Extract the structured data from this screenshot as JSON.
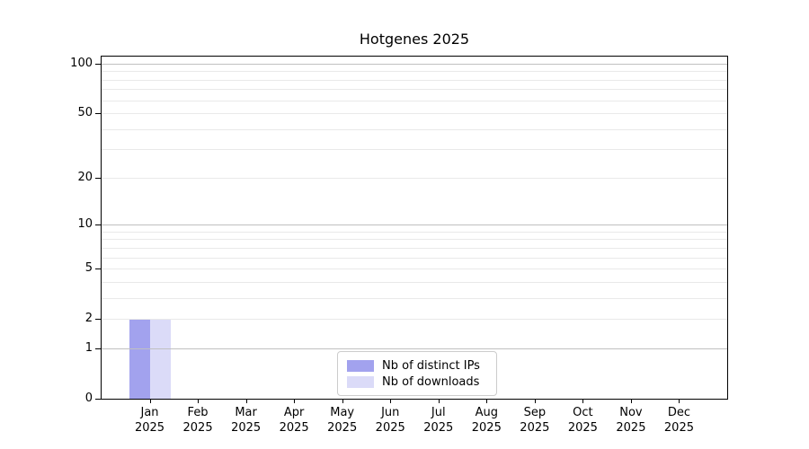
{
  "chart_data": {
    "type": "bar",
    "title": "Hotgenes 2025",
    "categories": [
      "Jan",
      "Feb",
      "Mar",
      "Apr",
      "May",
      "Jun",
      "Jul",
      "Aug",
      "Sep",
      "Oct",
      "Nov",
      "Dec"
    ],
    "x_year": "2025",
    "series": [
      {
        "name": "Nb of distinct IPs",
        "color": "#a2a2ee",
        "values": [
          2,
          0,
          0,
          0,
          0,
          0,
          0,
          0,
          0,
          0,
          0,
          0
        ]
      },
      {
        "name": "Nb of downloads",
        "color": "#dbdbf8",
        "values": [
          2,
          0,
          0,
          0,
          0,
          0,
          0,
          0,
          0,
          0,
          0,
          0
        ]
      }
    ],
    "xlabel": "",
    "ylabel": "",
    "yscale": "log1p",
    "ylim": [
      0,
      110.5
    ],
    "yticks": [
      0,
      1,
      2,
      5,
      10,
      20,
      50,
      100
    ],
    "minor_gridline_values": [
      3,
      4,
      6,
      7,
      8,
      9,
      30,
      40,
      60,
      70,
      80,
      90
    ],
    "decade_gridline_values": [
      1,
      10,
      100
    ],
    "grid": true,
    "legend_position": "lower center",
    "colors": {
      "minor_grid": "#e9e9e9",
      "major_grid": "#c0c0c0",
      "frame": "#000000",
      "background": "#ffffff"
    }
  }
}
